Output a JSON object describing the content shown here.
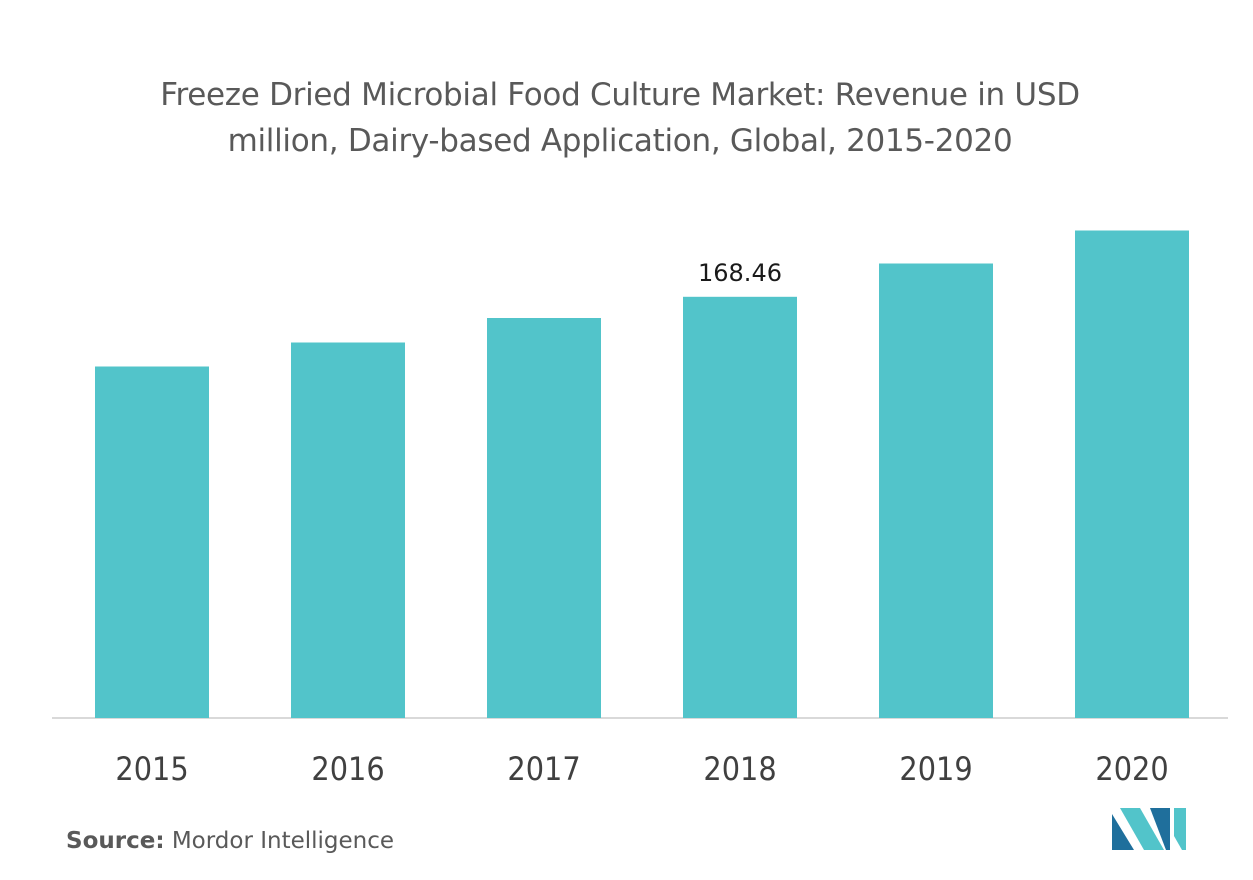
{
  "chart_data": {
    "type": "bar",
    "title_lines": [
      "Freeze Dried Microbial Food Culture Market: Revenue in USD",
      "million, Dairy-based Application, Global, 2015-2020"
    ],
    "categories": [
      "2015",
      "2016",
      "2017",
      "2018",
      "2019",
      "2020"
    ],
    "values": [
      140.6,
      150.2,
      160.0,
      168.46,
      181.8,
      195.0
    ],
    "data_labels": [
      {
        "category": "2018",
        "text": "168.46"
      }
    ],
    "xlabel": "",
    "ylabel": "",
    "ylim": [
      0,
      200
    ],
    "grid": false,
    "colors": {
      "bar": "#52c4ca",
      "axis": "#d9d9d9",
      "tick_label": "#404040",
      "data_label": "#1a1a1a"
    }
  },
  "footer": {
    "source_label": "Source:",
    "source_text": "Mordor Intelligence"
  },
  "logo": {
    "icon": "mordor-intelligence-logo-icon",
    "colors": [
      "#1f6f9c",
      "#52c4ca"
    ]
  }
}
